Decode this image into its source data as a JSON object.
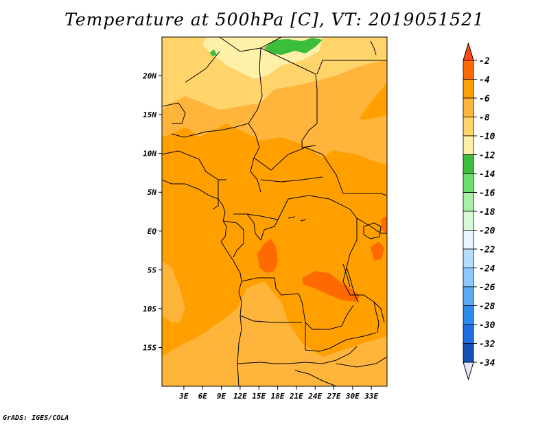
{
  "title": "Temperature at 500hPa [C], VT: 2019051521",
  "credit": "GrADS: IGES/COLA",
  "map": {
    "lon_range": [
      -0.5,
      35.5
    ],
    "lat_range": [
      -20,
      25
    ],
    "lat_ticks": [
      {
        "lat": 20,
        "label": "20N"
      },
      {
        "lat": 15,
        "label": "15N"
      },
      {
        "lat": 10,
        "label": "10N"
      },
      {
        "lat": 5,
        "label": "5N"
      },
      {
        "lat": 0,
        "label": "EQ"
      },
      {
        "lat": -5,
        "label": "5S"
      },
      {
        "lat": -10,
        "label": "10S"
      },
      {
        "lat": -15,
        "label": "15S"
      }
    ],
    "lon_ticks": [
      {
        "lon": 3,
        "label": "3E"
      },
      {
        "lon": 6,
        "label": "6E"
      },
      {
        "lon": 9,
        "label": "9E"
      },
      {
        "lon": 12,
        "label": "12E"
      },
      {
        "lon": 15,
        "label": "15E"
      },
      {
        "lon": 18,
        "label": "18E"
      },
      {
        "lon": 21,
        "label": "21E"
      },
      {
        "lon": 24,
        "label": "24E"
      },
      {
        "lon": 27,
        "label": "27E"
      },
      {
        "lon": 30,
        "label": "30E"
      },
      {
        "lon": 33,
        "label": "33E"
      }
    ]
  },
  "colorbar": {
    "top_arrow_color": "#ff4a14",
    "bottom_arrow_color": "#e6e6ff",
    "bins": [
      {
        "label": "-2",
        "color": "#ff6a00"
      },
      {
        "label": "-4",
        "color": "#ffa000"
      },
      {
        "label": "-6",
        "color": "#ffb53c"
      },
      {
        "label": "-8",
        "color": "#ffd46a"
      },
      {
        "label": "-10",
        "color": "#fff0a8"
      },
      {
        "label": "-12",
        "color": "#3cbe3c"
      },
      {
        "label": "-14",
        "color": "#6ce06c"
      },
      {
        "label": "-16",
        "color": "#a8f0a8"
      },
      {
        "label": "-18",
        "color": "#d8fad8"
      },
      {
        "label": "-20",
        "color": "#e6f5ff"
      },
      {
        "label": "-22",
        "color": "#b4dcff"
      },
      {
        "label": "-24",
        "color": "#8cc8ff"
      },
      {
        "label": "-26",
        "color": "#5aaaf5"
      },
      {
        "label": "-28",
        "color": "#2d8ceb"
      },
      {
        "label": "-30",
        "color": "#1e6ee1"
      },
      {
        "label": "-32",
        "color": "#1450b4"
      },
      {
        "label": "-34",
        "color": "#0a1478"
      }
    ]
  }
}
